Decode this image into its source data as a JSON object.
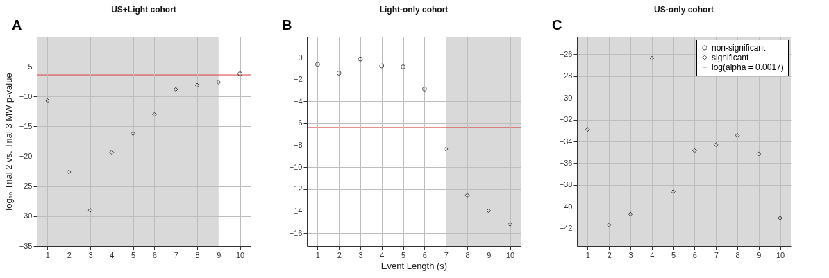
{
  "chart_data": [
    {
      "type": "scatter",
      "title": "US+Light cohort",
      "ylabel": "log₁₀ Trial 2 vs. Trial 3 MW p-value",
      "annotations": [
        "A"
      ],
      "x": [
        1,
        2,
        3,
        4,
        5,
        6,
        7,
        8,
        9,
        10
      ],
      "xlim": [
        0.5,
        10.5
      ],
      "xticks": [
        1,
        2,
        3,
        4,
        5,
        6,
        7,
        8,
        9,
        10
      ],
      "ylim": [
        -35,
        0
      ],
      "yticks": [
        -35,
        -30,
        -25,
        -20,
        -15,
        -10,
        -5
      ],
      "grid": true,
      "legend": false,
      "series": [
        {
          "color": "#000000",
          "marker": "circle",
          "values": [
            null,
            null,
            null,
            null,
            null,
            null,
            null,
            null,
            null,
            -6.2
          ]
        },
        {
          "color": "#000000",
          "marker": "diamond",
          "values": [
            -10.7,
            -22.6,
            -29.0,
            -19.3,
            -16.2,
            -13.0,
            -8.8,
            -8.1,
            -7.6,
            null
          ]
        }
      ],
      "ref_lines": [
        {
          "axis": "y",
          "value": -6.38,
          "color": "#d9413f"
        }
      ],
      "bands": [
        {
          "axis": "x",
          "from": 0.5,
          "to": 9,
          "color": "#d9d9d9"
        }
      ]
    },
    {
      "type": "scatter",
      "title": "Light-only cohort",
      "xlabel": "Event Length (s)",
      "annotations": [
        "B"
      ],
      "x": [
        1,
        2,
        3,
        4,
        5,
        6,
        7,
        8,
        9,
        10
      ],
      "xlim": [
        0.5,
        10.5
      ],
      "xticks": [
        1,
        2,
        3,
        4,
        5,
        6,
        7,
        8,
        9,
        10
      ],
      "ylim": [
        -17.2,
        1.9
      ],
      "yticks": [
        -16,
        -14,
        -12,
        -10,
        -8,
        -6,
        -4,
        -2,
        0
      ],
      "grid": true,
      "legend": false,
      "series": [
        {
          "color": "#000000",
          "marker": "circle",
          "values": [
            -0.62,
            -1.42,
            -0.14,
            -0.76,
            -0.85,
            -2.87,
            null,
            null,
            null,
            null
          ]
        },
        {
          "color": "#000000",
          "marker": "diamond",
          "values": [
            null,
            null,
            null,
            null,
            null,
            null,
            -8.35,
            -12.56,
            -13.98,
            -15.22
          ]
        }
      ],
      "ref_lines": [
        {
          "axis": "y",
          "value": -6.38,
          "color": "#d9413f"
        }
      ],
      "bands": [
        {
          "axis": "x",
          "from": 7,
          "to": 10.5,
          "color": "#d9d9d9"
        }
      ]
    },
    {
      "type": "scatter",
      "title": "US-only cohort",
      "annotations": [
        "C"
      ],
      "x": [
        1,
        2,
        3,
        4,
        5,
        6,
        7,
        8,
        9,
        10
      ],
      "xlim": [
        0.5,
        10.5
      ],
      "xticks": [
        1,
        2,
        3,
        4,
        5,
        6,
        7,
        8,
        9,
        10
      ],
      "ylim": [
        -43.6,
        -24.4
      ],
      "yticks": [
        -42,
        -40,
        -38,
        -36,
        -34,
        -32,
        -30,
        -28,
        -26
      ],
      "grid": true,
      "legend": "top right",
      "series": [
        {
          "name": "non-significant",
          "color": "#000000",
          "marker": "circle",
          "values": [
            null,
            null,
            null,
            null,
            null,
            null,
            null,
            null,
            null,
            null
          ]
        },
        {
          "name": "significant",
          "color": "#000000",
          "marker": "diamond",
          "values": [
            -32.9,
            -41.66,
            -40.66,
            -26.37,
            -38.6,
            -34.84,
            -34.29,
            -33.45,
            -35.14,
            -41.03
          ]
        },
        {
          "name": "log(alpha = 0.0017)",
          "type": "line",
          "color": "#d9413f",
          "values": [
            null,
            null,
            null,
            null,
            null,
            null,
            null,
            null,
            null,
            null
          ]
        }
      ],
      "bands": [
        {
          "axis": "x",
          "from": 0.5,
          "to": 10.5,
          "color": "#d9d9d9"
        }
      ]
    }
  ]
}
